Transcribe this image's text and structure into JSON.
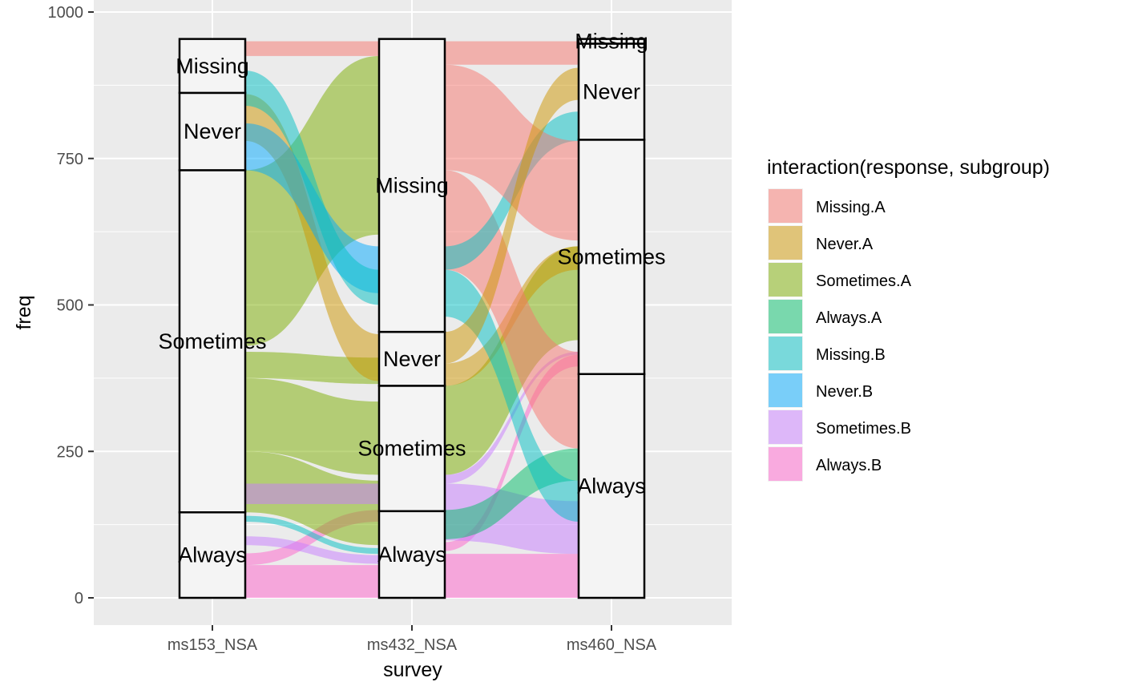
{
  "chart_data": {
    "type": "alluvial",
    "xlabel": "survey",
    "ylabel": "freq",
    "ylim": [
      0,
      1000
    ],
    "y_ticks": [
      0,
      250,
      500,
      750,
      1000
    ],
    "axes": [
      "ms153_NSA",
      "ms432_NSA",
      "ms460_NSA"
    ],
    "legend": {
      "title": "interaction(response, subgroup)",
      "placement": "right",
      "entries": [
        {
          "label": "Missing.A",
          "color": "#F8766D"
        },
        {
          "label": "Never.A",
          "color": "#CD9600"
        },
        {
          "label": "Sometimes.A",
          "color": "#7CAE00"
        },
        {
          "label": "Always.A",
          "color": "#00BE67"
        },
        {
          "label": "Missing.B",
          "color": "#00BFC4"
        },
        {
          "label": "Never.B",
          "color": "#00A9FF"
        },
        {
          "label": "Sometimes.B",
          "color": "#C77CFF"
        },
        {
          "label": "Always.B",
          "color": "#FF61CC"
        }
      ]
    },
    "strata": [
      [
        {
          "label": "Always",
          "lo": 0,
          "hi": 146
        },
        {
          "label": "Sometimes",
          "lo": 146,
          "hi": 730
        },
        {
          "label": "Never",
          "lo": 730,
          "hi": 862
        },
        {
          "label": "Missing",
          "lo": 862,
          "hi": 954
        }
      ],
      [
        {
          "label": "Always",
          "lo": 0,
          "hi": 148
        },
        {
          "label": "Sometimes",
          "lo": 148,
          "hi": 362
        },
        {
          "label": "Never",
          "lo": 362,
          "hi": 454
        },
        {
          "label": "Missing",
          "lo": 454,
          "hi": 954
        }
      ],
      [
        {
          "label": "Always",
          "lo": 0,
          "hi": 382
        },
        {
          "label": "Sometimes",
          "lo": 382,
          "hi": 782
        },
        {
          "label": "Never",
          "lo": 782,
          "hi": 946
        },
        {
          "label": "Missing",
          "lo": 946,
          "hi": 954
        }
      ]
    ],
    "flows": [
      {
        "group": "Always.B",
        "from_axis": 0,
        "from": [
          0,
          56
        ],
        "to": [
          0,
          56
        ]
      },
      {
        "group": "Always.B",
        "from_axis": 0,
        "from": [
          56,
          76
        ],
        "to": [
          130,
          150
        ]
      },
      {
        "group": "Sometimes.B",
        "from_axis": 0,
        "from": [
          90,
          105
        ],
        "to": [
          58,
          73
        ]
      },
      {
        "group": "Missing.B",
        "from_axis": 0,
        "from": [
          130,
          140
        ],
        "to": [
          75,
          85
        ]
      },
      {
        "group": "Sometimes.A",
        "from_axis": 0,
        "from": [
          146,
          250
        ],
        "to": [
          90,
          200
        ]
      },
      {
        "group": "Sometimes.B",
        "from_axis": 0,
        "from": [
          160,
          195
        ],
        "to": [
          160,
          195
        ]
      },
      {
        "group": "Sometimes.A",
        "from_axis": 0,
        "from": [
          250,
          375
        ],
        "to": [
          210,
          335
        ]
      },
      {
        "group": "Sometimes.A",
        "from_axis": 0,
        "from": [
          375,
          420
        ],
        "to": [
          365,
          410
        ]
      },
      {
        "group": "Sometimes.A",
        "from_axis": 0,
        "from": [
          430,
          730
        ],
        "to": [
          620,
          925
        ]
      },
      {
        "group": "Never.A",
        "from_axis": 0,
        "from": [
          780,
          860
        ],
        "to": [
          370,
          450
        ]
      },
      {
        "group": "Never.B",
        "from_axis": 0,
        "from": [
          730,
          810
        ],
        "to": [
          520,
          600
        ]
      },
      {
        "group": "Missing.B",
        "from_axis": 0,
        "from": [
          840,
          900
        ],
        "to": [
          500,
          560
        ]
      },
      {
        "group": "Always.B",
        "from_axis": 0,
        "from": [
          0,
          0
        ],
        "to": [
          0,
          0
        ]
      },
      {
        "group": "Missing.A",
        "from_axis": 0,
        "from": [
          925,
          950
        ],
        "to": [
          925,
          950
        ]
      },
      {
        "group": "Always.B",
        "from_axis": 1,
        "from": [
          0,
          75
        ],
        "to": [
          0,
          75
        ]
      },
      {
        "group": "Always.B",
        "from_axis": 1,
        "from": [
          80,
          95
        ],
        "to": [
          395,
          415
        ]
      },
      {
        "group": "Sometimes.B",
        "from_axis": 1,
        "from": [
          98,
          195
        ],
        "to": [
          75,
          165
        ]
      },
      {
        "group": "Always.A",
        "from_axis": 1,
        "from": [
          100,
          150
        ],
        "to": [
          200,
          255
        ]
      },
      {
        "group": "Sometimes.B",
        "from_axis": 1,
        "from": [
          195,
          210
        ],
        "to": [
          415,
          420
        ]
      },
      {
        "group": "Sometimes.A",
        "from_axis": 1,
        "from": [
          210,
          362
        ],
        "to": [
          440,
          600
        ]
      },
      {
        "group": "Never.A",
        "from_axis": 1,
        "from": [
          362,
          400
        ],
        "to": [
          560,
          600
        ]
      },
      {
        "group": "Missing.B",
        "from_axis": 1,
        "from": [
          480,
          560
        ],
        "to": [
          130,
          200
        ]
      },
      {
        "group": "Missing.A",
        "from_axis": 1,
        "from": [
          560,
          730
        ],
        "to": [
          255,
          420
        ]
      },
      {
        "group": "Missing.B",
        "from_axis": 1,
        "from": [
          560,
          600
        ],
        "to": [
          780,
          830
        ]
      },
      {
        "group": "Missing.A",
        "from_axis": 1,
        "from": [
          730,
          910
        ],
        "to": [
          610,
          780
        ]
      },
      {
        "group": "Never.A",
        "from_axis": 1,
        "from": [
          400,
          454
        ],
        "to": [
          850,
          905
        ]
      },
      {
        "group": "Missing.A",
        "from_axis": 1,
        "from": [
          910,
          950
        ],
        "to": [
          910,
          950
        ]
      }
    ]
  }
}
